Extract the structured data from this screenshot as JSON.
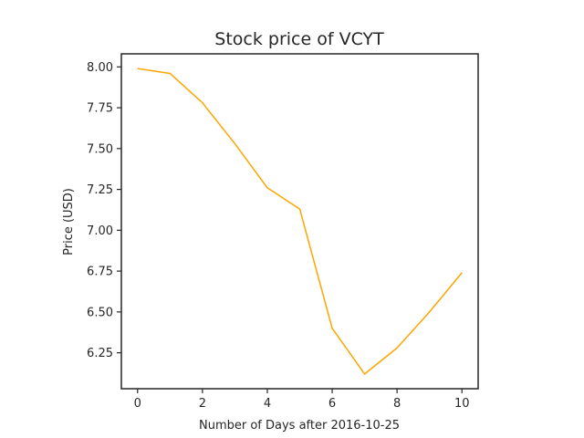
{
  "chart_data": {
    "type": "line",
    "title": "Stock price of VCYT",
    "xlabel": "Number of Days after 2016-10-25",
    "ylabel": "Price (USD)",
    "x": [
      0,
      1,
      2,
      3,
      4,
      5,
      6,
      7,
      8,
      9,
      10
    ],
    "series": [
      {
        "values": [
          7.99,
          7.96,
          7.78,
          7.53,
          7.26,
          7.13,
          6.4,
          6.12,
          6.28,
          6.5,
          6.74
        ],
        "color": "#FFA500"
      }
    ],
    "xlim": [
      -0.5,
      10.5
    ],
    "ylim": [
      6.03,
      8.08
    ],
    "xticks": [
      0,
      2,
      4,
      6,
      8,
      10
    ],
    "xtick_labels": [
      "0",
      "2",
      "4",
      "6",
      "8",
      "10"
    ],
    "yticks": [
      6.25,
      6.5,
      6.75,
      7.0,
      7.25,
      7.5,
      7.75,
      8.0
    ],
    "ytick_labels": [
      "6.25",
      "6.50",
      "6.75",
      "7.00",
      "7.25",
      "7.50",
      "7.75",
      "8.00"
    ],
    "grid": false,
    "legend": "none"
  }
}
